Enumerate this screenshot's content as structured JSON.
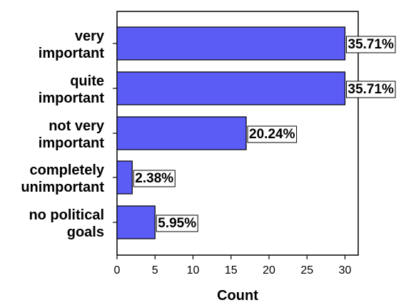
{
  "chart_data": {
    "type": "bar",
    "orientation": "horizontal",
    "categories": [
      [
        "very",
        "important"
      ],
      [
        "quite",
        "important"
      ],
      [
        "not very",
        "important"
      ],
      [
        "completely",
        "unimportant"
      ],
      [
        "no political",
        "goals"
      ]
    ],
    "values": [
      30,
      30,
      17,
      2,
      5
    ],
    "data_labels": [
      "35.71%",
      "35.71%",
      "20.24%",
      "2.38%",
      "5.95%"
    ],
    "xlabel": "Count",
    "ylabel": "",
    "xlim": [
      0,
      32
    ],
    "xticks": [
      0,
      5,
      10,
      15,
      20,
      25,
      30
    ],
    "bar_color": "#5b5bf5",
    "grid": false
  }
}
